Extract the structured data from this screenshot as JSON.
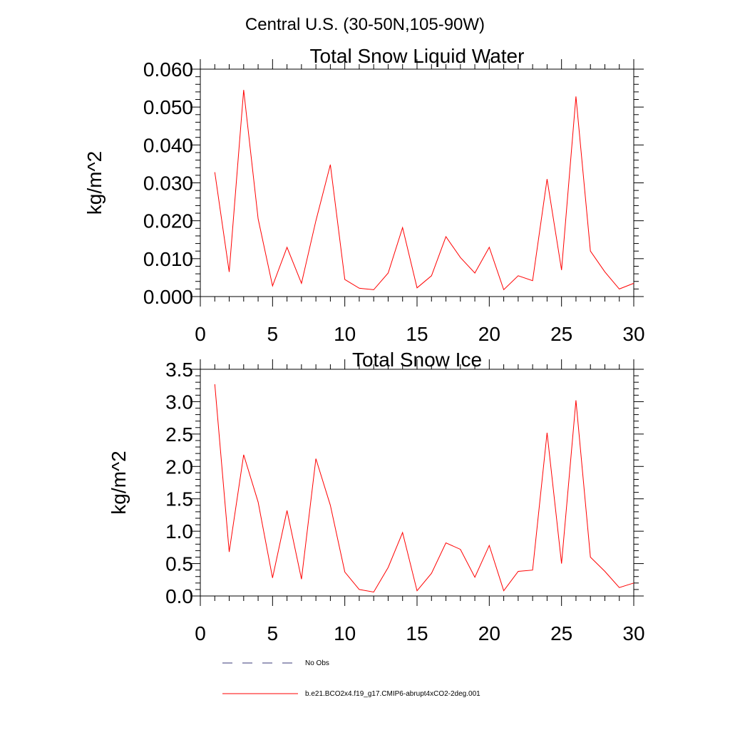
{
  "figure": {
    "main_title": "Central U.S. (30-50N,105-90W)"
  },
  "chart_data": [
    {
      "type": "line",
      "title": "Total Snow Liquid Water",
      "xlabel": "",
      "ylabel": "kg/m^2",
      "xlim": [
        0,
        30
      ],
      "ylim": [
        0,
        0.06
      ],
      "x_ticks": [
        0,
        5,
        10,
        15,
        20,
        25,
        30
      ],
      "x_tick_labels": [
        "0",
        "5",
        "10",
        "15",
        "20",
        "25",
        "30"
      ],
      "y_ticks": [
        0,
        0.01,
        0.02,
        0.03,
        0.04,
        0.05,
        0.06
      ],
      "y_tick_labels": [
        "0.000",
        "0.010",
        "0.020",
        "0.030",
        "0.040",
        "0.050",
        "0.060"
      ],
      "grid": false,
      "x": [
        1,
        2,
        3,
        4,
        5,
        6,
        7,
        8,
        9,
        10,
        11,
        12,
        13,
        14,
        15,
        16,
        17,
        18,
        19,
        20,
        21,
        22,
        23,
        24,
        25,
        26,
        27,
        28,
        29,
        30
      ],
      "series": [
        {
          "name": "b.e21.BCO2x4.f19_g17.CMIP6-abrupt4xCO2-2deg.001",
          "color": "#ff0000",
          "values": [
            0.0328,
            0.0065,
            0.0545,
            0.0205,
            0.0028,
            0.013,
            0.0035,
            0.02,
            0.0348,
            0.0045,
            0.0022,
            0.0018,
            0.0062,
            0.0182,
            0.0023,
            0.0055,
            0.0158,
            0.0103,
            0.0062,
            0.013,
            0.0018,
            0.0055,
            0.0042,
            0.031,
            0.007,
            0.0528,
            0.012,
            0.0065,
            0.002,
            0.0035
          ]
        }
      ]
    },
    {
      "type": "line",
      "title": "Total Snow Ice",
      "xlabel": "",
      "ylabel": "kg/m^2",
      "xlim": [
        0,
        30
      ],
      "ylim": [
        0,
        3.5
      ],
      "x_ticks": [
        0,
        5,
        10,
        15,
        20,
        25,
        30
      ],
      "x_tick_labels": [
        "0",
        "5",
        "10",
        "15",
        "20",
        "25",
        "30"
      ],
      "y_ticks": [
        0,
        0.5,
        1.0,
        1.5,
        2.0,
        2.5,
        3.0,
        3.5
      ],
      "y_tick_labels": [
        "0.0",
        "0.5",
        "1.0",
        "1.5",
        "2.0",
        "2.5",
        "3.0",
        "3.5"
      ],
      "grid": false,
      "x": [
        1,
        2,
        3,
        4,
        5,
        6,
        7,
        8,
        9,
        10,
        11,
        12,
        13,
        14,
        15,
        16,
        17,
        18,
        19,
        20,
        21,
        22,
        23,
        24,
        25,
        26,
        27,
        28,
        29,
        30
      ],
      "series": [
        {
          "name": "b.e21.BCO2x4.f19_g17.CMIP6-abrupt4xCO2-2deg.001",
          "color": "#ff0000",
          "values": [
            3.27,
            0.68,
            2.18,
            1.45,
            0.28,
            1.32,
            0.26,
            2.12,
            1.4,
            0.37,
            0.1,
            0.06,
            0.44,
            0.98,
            0.08,
            0.35,
            0.82,
            0.72,
            0.29,
            0.78,
            0.08,
            0.38,
            0.4,
            2.52,
            0.5,
            3.02,
            0.6,
            0.38,
            0.13,
            0.2
          ]
        }
      ]
    }
  ],
  "legend": {
    "items": [
      {
        "label": "No Obs",
        "color": "#3a3a7a",
        "style": "dashed"
      },
      {
        "label": "b.e21.BCO2x4.f19_g17.CMIP6-abrupt4xCO2-2deg.001",
        "color": "#ff0000",
        "style": "solid"
      }
    ]
  }
}
